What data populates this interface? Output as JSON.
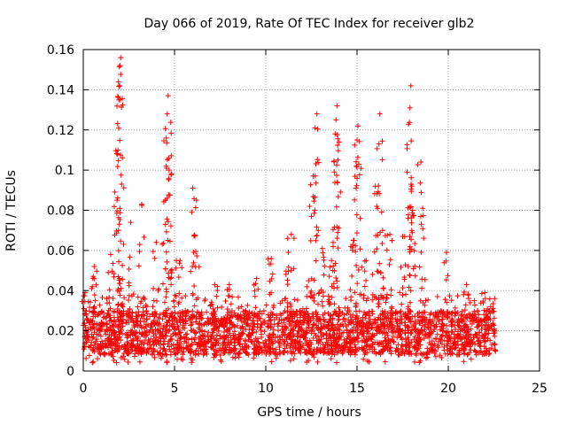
{
  "chart_data": {
    "type": "scatter",
    "title": "Day 066 of 2019, Rate Of TEC Index for receiver glb2",
    "xlabel": "GPS time / hours",
    "ylabel": "ROTI / TECUs",
    "xlim": [
      0,
      25
    ],
    "ylim": [
      0,
      0.16
    ],
    "xticks": [
      "0",
      "5",
      "10",
      "15",
      "20",
      "25"
    ],
    "yticks": [
      "0",
      "0.02",
      "0.04",
      "0.06",
      "0.08",
      "0.1",
      "0.12",
      "0.14",
      "0.16"
    ],
    "grid": true,
    "marker": "+",
    "color": "#ff0000",
    "data_extent_hours": [
      0,
      22.6
    ],
    "baseline_band": [
      0.008,
      0.03
    ],
    "series": [
      {
        "name": "ROTI",
        "peaks": [
          {
            "x": 0.1,
            "y": 0.039
          },
          {
            "x": 0.6,
            "y": 0.052
          },
          {
            "x": 1.5,
            "y": 0.058
          },
          {
            "x": 1.85,
            "y": 0.085
          },
          {
            "x": 1.9,
            "y": 0.11
          },
          {
            "x": 1.95,
            "y": 0.135
          },
          {
            "x": 2.0,
            "y": 0.142
          },
          {
            "x": 2.02,
            "y": 0.152
          },
          {
            "x": 2.05,
            "y": 0.156
          },
          {
            "x": 2.1,
            "y": 0.093
          },
          {
            "x": 2.6,
            "y": 0.074
          },
          {
            "x": 3.2,
            "y": 0.083
          },
          {
            "x": 4.0,
            "y": 0.064
          },
          {
            "x": 4.5,
            "y": 0.085
          },
          {
            "x": 4.55,
            "y": 0.116
          },
          {
            "x": 4.6,
            "y": 0.128
          },
          {
            "x": 4.65,
            "y": 0.137
          },
          {
            "x": 4.7,
            "y": 0.1
          },
          {
            "x": 5.1,
            "y": 0.055
          },
          {
            "x": 5.3,
            "y": 0.055
          },
          {
            "x": 6.0,
            "y": 0.091
          },
          {
            "x": 6.2,
            "y": 0.085
          },
          {
            "x": 7.2,
            "y": 0.043
          },
          {
            "x": 8.0,
            "y": 0.043
          },
          {
            "x": 9.5,
            "y": 0.046
          },
          {
            "x": 10.3,
            "y": 0.056
          },
          {
            "x": 11.2,
            "y": 0.066
          },
          {
            "x": 11.4,
            "y": 0.068
          },
          {
            "x": 12.4,
            "y": 0.082
          },
          {
            "x": 12.6,
            "y": 0.097
          },
          {
            "x": 12.7,
            "y": 0.121
          },
          {
            "x": 12.8,
            "y": 0.128
          },
          {
            "x": 13.1,
            "y": 0.061
          },
          {
            "x": 13.6,
            "y": 0.055
          },
          {
            "x": 13.8,
            "y": 0.118
          },
          {
            "x": 13.85,
            "y": 0.125
          },
          {
            "x": 13.9,
            "y": 0.132
          },
          {
            "x": 13.95,
            "y": 0.105
          },
          {
            "x": 14.8,
            "y": 0.065
          },
          {
            "x": 15.0,
            "y": 0.115
          },
          {
            "x": 15.05,
            "y": 0.122
          },
          {
            "x": 15.1,
            "y": 0.103
          },
          {
            "x": 15.5,
            "y": 0.055
          },
          {
            "x": 16.0,
            "y": 0.092
          },
          {
            "x": 16.2,
            "y": 0.113
          },
          {
            "x": 16.25,
            "y": 0.128
          },
          {
            "x": 16.4,
            "y": 0.07
          },
          {
            "x": 16.8,
            "y": 0.068
          },
          {
            "x": 17.5,
            "y": 0.067
          },
          {
            "x": 17.9,
            "y": 0.131
          },
          {
            "x": 17.95,
            "y": 0.142
          },
          {
            "x": 18.0,
            "y": 0.092
          },
          {
            "x": 18.05,
            "y": 0.08
          },
          {
            "x": 18.5,
            "y": 0.104
          },
          {
            "x": 18.6,
            "y": 0.081
          },
          {
            "x": 19.9,
            "y": 0.059
          },
          {
            "x": 21.0,
            "y": 0.043
          },
          {
            "x": 22.0,
            "y": 0.039
          }
        ]
      }
    ]
  }
}
